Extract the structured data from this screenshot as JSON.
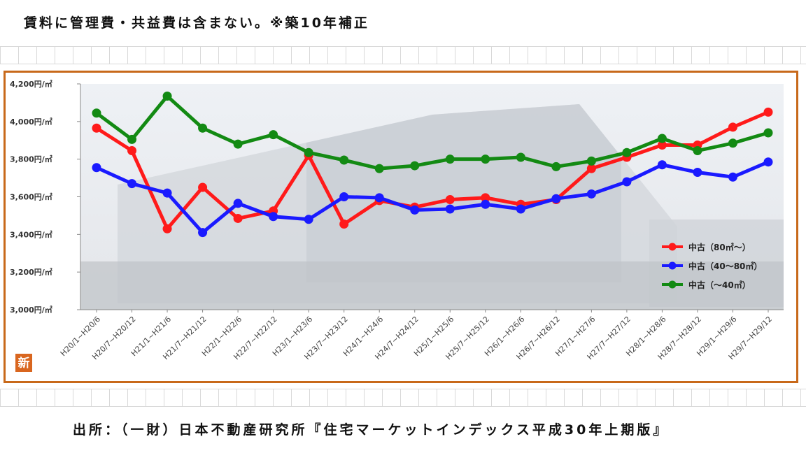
{
  "header": {
    "title": "賃料に管理費・共益費は含まない。※築10年補正"
  },
  "footer": {
    "source": "出所：（一財）日本不動産研究所『住宅マーケットインデックス平成30年上期版』"
  },
  "badge": {
    "label": "新"
  },
  "colors": {
    "frame": "#c8691a",
    "red": "#ff1a1a",
    "blue": "#1a1aff",
    "green": "#138a13"
  },
  "chart_data": {
    "type": "line",
    "title": "",
    "xlabel": "",
    "ylabel": "",
    "ylim": [
      3000,
      4200
    ],
    "yticks": [
      "3,000円/㎡",
      "3,200円/㎡",
      "3,400円/㎡",
      "3,600円/㎡",
      "3,800円/㎡",
      "4,000円/㎡",
      "4,200円/㎡"
    ],
    "grid": false,
    "legend_position": "right",
    "categories": [
      "H20/1~H20/6",
      "H20/7~H20/12",
      "H21/1~H21/6",
      "H21/7~H21/12",
      "H22/1~H22/6",
      "H22/7~H22/12",
      "H23/1~H23/6",
      "H23/7~H23/12",
      "H24/1~H24/6",
      "H24/7~H24/12",
      "H25/1~H25/6",
      "H25/7~H25/12",
      "H26/1~H26/6",
      "H26/7~H26/12",
      "H27/1~H27/6",
      "H27/7~H27/12",
      "H28/1~H28/6",
      "H28/7~H28/12",
      "H29/1~H29/6",
      "H29/7~H29/12"
    ],
    "series": [
      {
        "name": "中古（80㎡～）",
        "color": "#ff1a1a",
        "values": [
          3965,
          3845,
          3430,
          3650,
          3485,
          3525,
          3820,
          3455,
          3580,
          3545,
          3585,
          3595,
          3560,
          3585,
          3750,
          3810,
          3875,
          3875,
          3970,
          4050
        ]
      },
      {
        "name": "中古（40～80㎡）",
        "color": "#1a1aff",
        "values": [
          3755,
          3670,
          3620,
          3410,
          3565,
          3495,
          3480,
          3600,
          3595,
          3530,
          3535,
          3560,
          3535,
          3590,
          3615,
          3680,
          3770,
          3730,
          3705,
          3785
        ]
      },
      {
        "name": "中古（～40㎡）",
        "color": "#138a13",
        "values": [
          4045,
          3905,
          4135,
          3965,
          3880,
          3930,
          3835,
          3795,
          3750,
          3765,
          3800,
          3800,
          3810,
          3760,
          3790,
          3835,
          3910,
          3845,
          3885,
          3940
        ]
      }
    ]
  }
}
